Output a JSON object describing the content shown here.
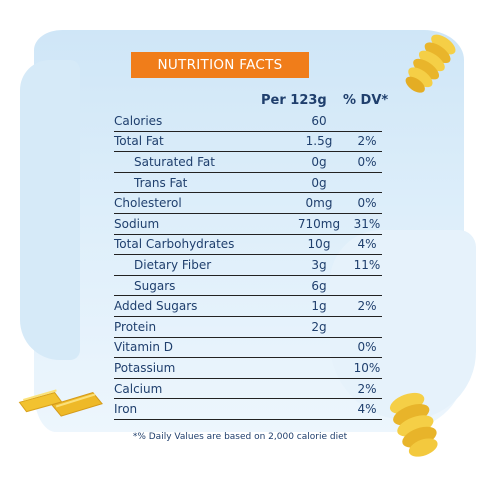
{
  "title": "NUTRITION FACTS",
  "columns": {
    "amount": "Per 123g",
    "dv": "% DV*"
  },
  "rows": [
    {
      "name": "Calories",
      "amount": "60",
      "dv": ""
    },
    {
      "name": "Total Fat",
      "amount": "1.5g",
      "dv": "2%"
    },
    {
      "name": "Saturated Fat",
      "amount": "0g",
      "dv": "0%"
    },
    {
      "name": "Trans Fat",
      "amount": "0g",
      "dv": ""
    },
    {
      "name": "Cholesterol",
      "amount": "0mg",
      "dv": "0%"
    },
    {
      "name": "Sodium",
      "amount": "710mg",
      "dv": "31%"
    },
    {
      "name": "Total Carbohydrates",
      "amount": "10g",
      "dv": "4%"
    },
    {
      "name": "Dietary Fiber",
      "amount": "3g",
      "dv": "11%"
    },
    {
      "name": "Sugars",
      "amount": "6g",
      "dv": ""
    },
    {
      "name": "Added Sugars",
      "amount": "1g",
      "dv": "2%"
    },
    {
      "name": "Protein",
      "amount": "2g",
      "dv": ""
    },
    {
      "name": "Vitamin D",
      "amount": "",
      "dv": "0%"
    },
    {
      "name": "Potassium",
      "amount": "",
      "dv": "10%"
    },
    {
      "name": "Calcium",
      "amount": "",
      "dv": "2%"
    },
    {
      "name": "Iron",
      "amount": "",
      "dv": "4%"
    }
  ],
  "footnote": "*% Daily Values are based on 2,000 calorie diet",
  "colors": {
    "title_bar": "#f07d1a",
    "text": "#1f3f6d",
    "background": "#d8ebf8",
    "pasta": "#f2c230"
  },
  "decorations": [
    "fusilli-pasta",
    "penne-pasta",
    "fusilli-pasta-bottom"
  ]
}
